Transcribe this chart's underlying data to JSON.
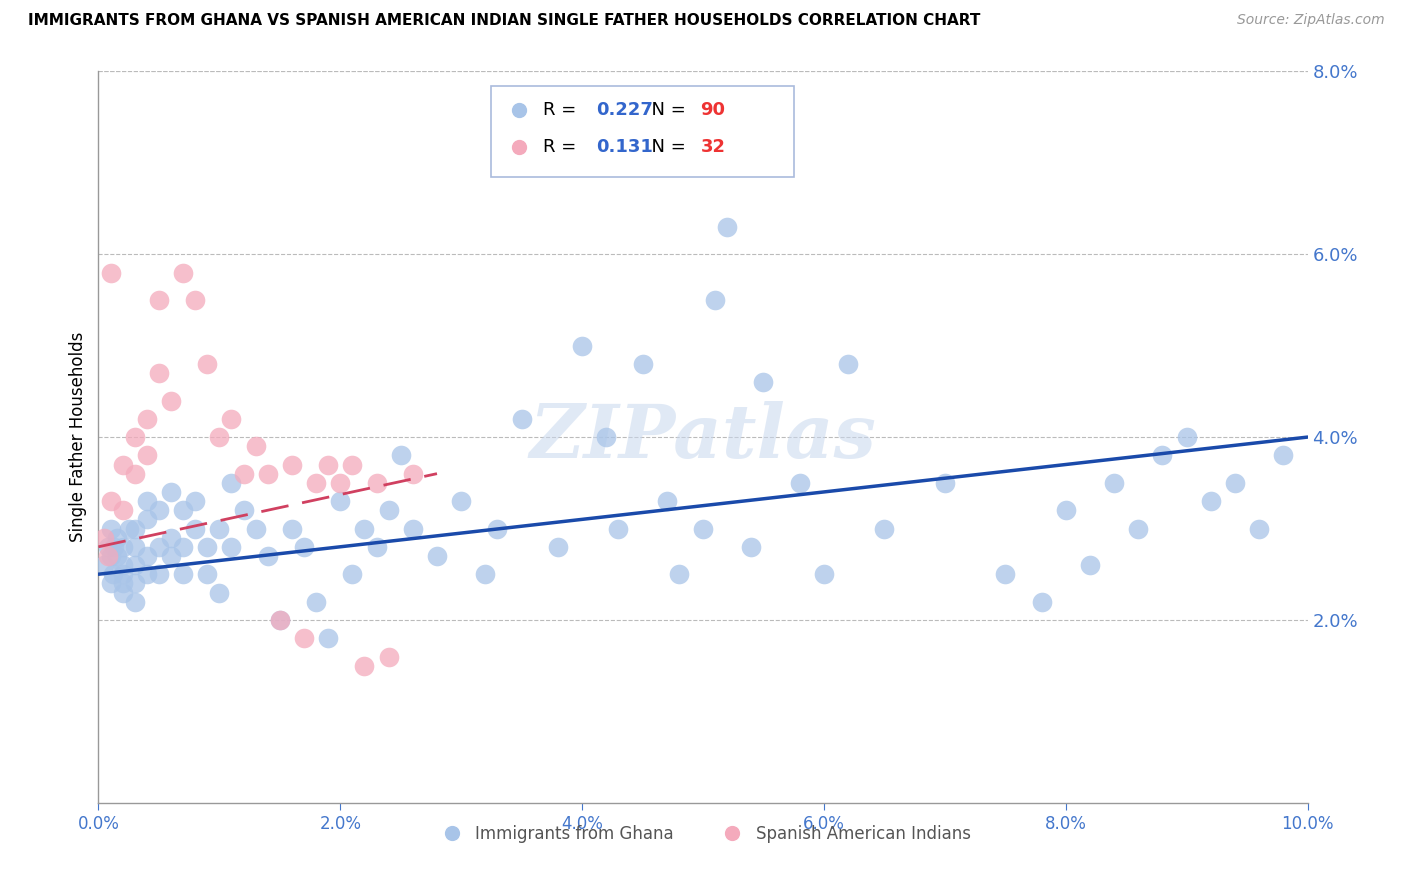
{
  "title": "IMMIGRANTS FROM GHANA VS SPANISH AMERICAN INDIAN SINGLE FATHER HOUSEHOLDS CORRELATION CHART",
  "source": "Source: ZipAtlas.com",
  "ylabel": "Single Father Households",
  "legend_labels": [
    "Immigrants from Ghana",
    "Spanish American Indians"
  ],
  "R_blue": 0.227,
  "N_blue": 90,
  "R_pink": 0.131,
  "N_pink": 32,
  "xlim": [
    0.0,
    0.1
  ],
  "ylim": [
    0.0,
    0.08
  ],
  "xticks": [
    0.0,
    0.02,
    0.04,
    0.06,
    0.08,
    0.1
  ],
  "yticks_right": [
    0.02,
    0.04,
    0.06,
    0.08
  ],
  "blue_color": "#A8C4E8",
  "pink_color": "#F4AABC",
  "trend_blue": "#1A4AAA",
  "trend_pink": "#D04060",
  "watermark": "ZIPatlas",
  "blue_scatter_x": [
    0.0005,
    0.0008,
    0.001,
    0.001,
    0.001,
    0.0012,
    0.0013,
    0.0015,
    0.0015,
    0.002,
    0.002,
    0.002,
    0.002,
    0.002,
    0.0025,
    0.003,
    0.003,
    0.003,
    0.003,
    0.003,
    0.004,
    0.004,
    0.004,
    0.004,
    0.005,
    0.005,
    0.005,
    0.006,
    0.006,
    0.006,
    0.007,
    0.007,
    0.007,
    0.008,
    0.008,
    0.009,
    0.009,
    0.01,
    0.01,
    0.011,
    0.011,
    0.012,
    0.013,
    0.014,
    0.015,
    0.016,
    0.017,
    0.018,
    0.019,
    0.02,
    0.021,
    0.022,
    0.023,
    0.024,
    0.025,
    0.026,
    0.028,
    0.03,
    0.032,
    0.033,
    0.035,
    0.038,
    0.04,
    0.042,
    0.043,
    0.045,
    0.047,
    0.048,
    0.05,
    0.051,
    0.052,
    0.054,
    0.055,
    0.058,
    0.06,
    0.062,
    0.065,
    0.07,
    0.075,
    0.078,
    0.08,
    0.082,
    0.084,
    0.086,
    0.088,
    0.09,
    0.092,
    0.094,
    0.096,
    0.098
  ],
  "blue_scatter_y": [
    0.026,
    0.028,
    0.024,
    0.027,
    0.03,
    0.025,
    0.028,
    0.027,
    0.029,
    0.024,
    0.026,
    0.028,
    0.025,
    0.023,
    0.03,
    0.028,
    0.026,
    0.024,
    0.022,
    0.03,
    0.031,
    0.027,
    0.025,
    0.033,
    0.032,
    0.028,
    0.025,
    0.034,
    0.029,
    0.027,
    0.032,
    0.028,
    0.025,
    0.033,
    0.03,
    0.028,
    0.025,
    0.03,
    0.023,
    0.035,
    0.028,
    0.032,
    0.03,
    0.027,
    0.02,
    0.03,
    0.028,
    0.022,
    0.018,
    0.033,
    0.025,
    0.03,
    0.028,
    0.032,
    0.038,
    0.03,
    0.027,
    0.033,
    0.025,
    0.03,
    0.042,
    0.028,
    0.05,
    0.04,
    0.03,
    0.048,
    0.033,
    0.025,
    0.03,
    0.055,
    0.063,
    0.028,
    0.046,
    0.035,
    0.025,
    0.048,
    0.03,
    0.035,
    0.025,
    0.022,
    0.032,
    0.026,
    0.035,
    0.03,
    0.038,
    0.04,
    0.033,
    0.035,
    0.03,
    0.038
  ],
  "pink_scatter_x": [
    0.0005,
    0.0008,
    0.001,
    0.001,
    0.002,
    0.002,
    0.003,
    0.003,
    0.004,
    0.004,
    0.005,
    0.005,
    0.006,
    0.007,
    0.008,
    0.009,
    0.01,
    0.011,
    0.012,
    0.013,
    0.014,
    0.015,
    0.016,
    0.017,
    0.018,
    0.019,
    0.02,
    0.021,
    0.022,
    0.023,
    0.024,
    0.026
  ],
  "pink_scatter_y": [
    0.029,
    0.027,
    0.033,
    0.058,
    0.032,
    0.037,
    0.036,
    0.04,
    0.038,
    0.042,
    0.047,
    0.055,
    0.044,
    0.058,
    0.055,
    0.048,
    0.04,
    0.042,
    0.036,
    0.039,
    0.036,
    0.02,
    0.037,
    0.018,
    0.035,
    0.037,
    0.035,
    0.037,
    0.015,
    0.035,
    0.016,
    0.036
  ],
  "blue_trend_x": [
    0.0,
    0.1
  ],
  "blue_trend_y": [
    0.025,
    0.04
  ],
  "pink_trend_x": [
    0.0,
    0.028
  ],
  "pink_trend_y": [
    0.028,
    0.036
  ]
}
